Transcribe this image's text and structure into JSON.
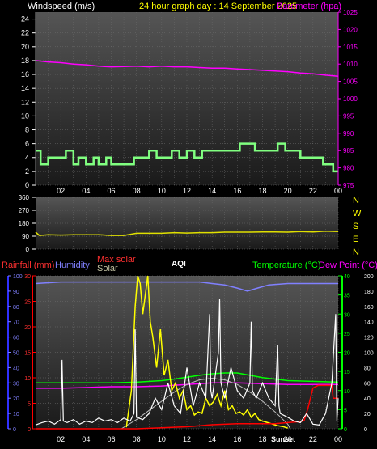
{
  "header": {
    "windspeed_label": "Windspeed (m/s)",
    "title": "24 hour graph day : 14 September 2025",
    "barometer_label": "Barometer (hpa)"
  },
  "wind_direction_letters": [
    "N",
    "W",
    "S",
    "E",
    "N"
  ],
  "bottom_labels": {
    "rainfall": "Rainfall (mm)",
    "humidity": "Humidity",
    "max_solar": "Max solar",
    "solar": "Solar",
    "aqi": "AQI",
    "temperature": "Temperature (°C)",
    "dew_point": "Dew Point (°C)",
    "sunset": "Sunset"
  },
  "colors": {
    "windspeed": "#80ff80",
    "barometer": "#ff00ff",
    "wind_direction": "#e0e000",
    "rainfall": "#ff0000",
    "humidity": "#8080ff",
    "max_solar": "#c0c0c0",
    "solar": "#ffff00",
    "aqi": "#ffffff",
    "temperature": "#00ff00",
    "dew_point": "#ff00ff"
  },
  "chart_data": [
    {
      "type": "line",
      "name": "wind-baro",
      "x_ticks": [
        "02",
        "04",
        "06",
        "08",
        "10",
        "12",
        "14",
        "16",
        "18",
        "20",
        "22",
        "00"
      ],
      "xlim": [
        0,
        24
      ],
      "ylim_left": [
        0,
        25
      ],
      "yticks_left": [
        0,
        2,
        4,
        6,
        8,
        10,
        12,
        14,
        16,
        18,
        20,
        22,
        24
      ],
      "ylim_right": [
        975,
        1025
      ],
      "yticks_right": [
        975,
        980,
        985,
        990,
        995,
        1000,
        1005,
        1010,
        1015,
        1020,
        1025
      ],
      "series": [
        {
          "key": "windspeed",
          "axis": "left",
          "step": true,
          "x": [
            0,
            0.4,
            1.0,
            1.6,
            2.4,
            3.0,
            3.4,
            4.0,
            4.6,
            5.0,
            5.6,
            6.0,
            6.6,
            7.2,
            7.8,
            8.6,
            9.0,
            9.6,
            10.2,
            10.8,
            11.4,
            12.0,
            12.6,
            13.2,
            13.8,
            14.4,
            15.0,
            15.6,
            16.2,
            16.8,
            17.4,
            18.0,
            18.6,
            19.2,
            19.8,
            20.4,
            21.0,
            21.6,
            22.2,
            22.8,
            23.2,
            23.6,
            24.0
          ],
          "y": [
            5,
            3,
            4,
            4,
            5,
            3,
            4,
            3,
            4,
            3,
            4,
            3,
            3,
            3,
            4,
            4,
            5,
            4,
            4,
            5,
            4,
            5,
            4,
            5,
            5,
            5,
            5,
            5,
            6,
            6,
            5,
            5,
            5,
            6,
            5,
            5,
            4,
            4,
            4,
            3,
            3,
            2,
            2
          ]
        },
        {
          "key": "barometer",
          "axis": "right",
          "step": false,
          "x": [
            0,
            1,
            2,
            3,
            4,
            5,
            6,
            7,
            8,
            9,
            10,
            11,
            12,
            13,
            14,
            15,
            16,
            17,
            18,
            19,
            20,
            21,
            22,
            23,
            24
          ],
          "y": [
            1011.0,
            1010.6,
            1010.4,
            1010.0,
            1009.8,
            1009.4,
            1009.2,
            1009.3,
            1009.4,
            1009.2,
            1009.4,
            1009.2,
            1009.2,
            1009.0,
            1008.8,
            1008.8,
            1008.6,
            1008.4,
            1008.2,
            1008.0,
            1007.8,
            1007.4,
            1007.2,
            1006.8,
            1006.5
          ]
        }
      ]
    },
    {
      "type": "line",
      "name": "wind-direction",
      "xlim": [
        0,
        24
      ],
      "ylim": [
        0,
        360
      ],
      "yticks": [
        0,
        90,
        180,
        270,
        360
      ],
      "series": [
        {
          "key": "wind_direction",
          "x": [
            0,
            0.3,
            1,
            2,
            3,
            4,
            5,
            6,
            7,
            8,
            9,
            10,
            11,
            12,
            13,
            14,
            15,
            16,
            17,
            18,
            19,
            20,
            21,
            22,
            23,
            24
          ],
          "y": [
            118,
            95,
            100,
            98,
            100,
            100,
            100,
            95,
            95,
            110,
            110,
            110,
            115,
            112,
            115,
            115,
            118,
            118,
            118,
            120,
            120,
            118,
            122,
            120,
            125,
            122
          ]
        }
      ]
    },
    {
      "type": "line",
      "name": "rain-temp-solar",
      "x_ticks": [
        "02",
        "04",
        "06",
        "08",
        "10",
        "12",
        "14",
        "16",
        "18",
        "20",
        "22",
        "00"
      ],
      "xlim": [
        0,
        24
      ],
      "ylim_rain": [
        0,
        30
      ],
      "yticks_rain": [
        0,
        5,
        10,
        15,
        20,
        25,
        30
      ],
      "ylim_hum": [
        0,
        100
      ],
      "yticks_hum": [
        0,
        10,
        20,
        30,
        40,
        50,
        60,
        70,
        80,
        90,
        100
      ],
      "ylim_temp": [
        0,
        40
      ],
      "yticks_temp": [
        0,
        5,
        10,
        15,
        20,
        25,
        30,
        35,
        40
      ],
      "ylim_solar": [
        0,
        200
      ],
      "yticks_solar": [
        0,
        20,
        40,
        60,
        80,
        100,
        120,
        140,
        160,
        180,
        200
      ],
      "series": [
        {
          "key": "humidity",
          "axis": "hum",
          "x": [
            0,
            2,
            4,
            6,
            8,
            10,
            12,
            13,
            14,
            15,
            16,
            16.8,
            17.6,
            18.5,
            20,
            22,
            24
          ],
          "y": [
            95,
            96,
            96,
            96,
            96,
            96,
            96,
            96,
            95,
            94,
            92,
            90,
            92,
            94,
            95,
            95,
            95
          ]
        },
        {
          "key": "temperature",
          "axis": "temp",
          "x": [
            0,
            2,
            4,
            6,
            8,
            10,
            11,
            12,
            13,
            14,
            15,
            16,
            17,
            18,
            19,
            20,
            22,
            24
          ],
          "y": [
            12.0,
            12.0,
            12.0,
            12.0,
            12.2,
            12.6,
            13.0,
            13.5,
            14.0,
            14.4,
            14.6,
            14.6,
            14.0,
            13.4,
            13.0,
            12.6,
            12.4,
            12.2
          ]
        },
        {
          "key": "dew_point",
          "axis": "temp",
          "x": [
            0,
            2,
            4,
            6,
            8,
            10,
            12,
            14,
            16,
            18,
            20,
            22,
            24
          ],
          "y": [
            10.6,
            10.6,
            10.8,
            11.0,
            11.0,
            11.2,
            11.6,
            12.0,
            12.0,
            11.8,
            11.6,
            11.6,
            11.6
          ]
        },
        {
          "key": "max_solar",
          "axis": "solar",
          "x": [
            6.8,
            8,
            9,
            10,
            11,
            12,
            13,
            14,
            15,
            16,
            17,
            18,
            19,
            20,
            20.2
          ],
          "y": [
            0,
            12,
            24,
            36,
            48,
            58,
            64,
            66,
            64,
            58,
            48,
            36,
            22,
            6,
            0
          ]
        },
        {
          "key": "solar",
          "axis": "solar",
          "x": [
            7.2,
            7.6,
            7.9,
            8.1,
            8.3,
            8.5,
            8.7,
            8.9,
            9.1,
            9.3,
            9.6,
            9.9,
            10.2,
            10.5,
            10.8,
            11.1,
            11.4,
            11.7,
            12.0,
            12.3,
            12.6,
            12.9,
            13.2,
            13.5,
            13.8,
            14.1,
            14.4,
            14.7,
            15.0,
            15.3,
            15.6,
            15.9,
            16.2,
            16.5,
            16.8,
            17.1,
            17.4,
            17.7,
            18.0,
            18.4,
            18.8,
            19.2,
            19.6,
            20.0
          ],
          "y": [
            2,
            50,
            160,
            200,
            190,
            150,
            175,
            200,
            140,
            120,
            80,
            130,
            70,
            90,
            50,
            60,
            40,
            50,
            25,
            30,
            18,
            22,
            20,
            40,
            30,
            35,
            45,
            30,
            50,
            25,
            30,
            20,
            22,
            18,
            25,
            15,
            20,
            12,
            10,
            8,
            6,
            4,
            3,
            1
          ]
        },
        {
          "key": "rainfall",
          "axis": "rain",
          "x": [
            0,
            8,
            10,
            12,
            14,
            16,
            18,
            19,
            20,
            21,
            21.3,
            21.6,
            22,
            22.4,
            23.5,
            23.6,
            24
          ],
          "y": [
            0,
            0,
            0.2,
            0.4,
            0.8,
            1.0,
            1.0,
            1.0,
            1.2,
            1.4,
            1.6,
            4.0,
            8.0,
            8.5,
            8.5,
            6.0,
            6.0
          ]
        },
        {
          "key": "aqi",
          "axis": "solar",
          "x": [
            0,
            0.5,
            1.0,
            1.5,
            2.0,
            2.1,
            2.2,
            2.5,
            3.0,
            3.5,
            4.0,
            4.5,
            5.0,
            5.5,
            6.0,
            6.5,
            7.0,
            7.5,
            7.8,
            7.9,
            8.0,
            8.5,
            9.0,
            9.5,
            10.0,
            10.5,
            11.0,
            11.5,
            12.0,
            12.5,
            13.0,
            13.5,
            13.8,
            13.9,
            14.0,
            14.5,
            14.6,
            14.7,
            15.0,
            15.5,
            16.0,
            16.5,
            17.0,
            17.1,
            17.2,
            17.5,
            18.0,
            18.5,
            19.0,
            19.2,
            19.3,
            19.4,
            20.0,
            20.5,
            21.0,
            21.5,
            22.0,
            22.5,
            23.0,
            23.5,
            23.8,
            23.9,
            24.0
          ],
          "y": [
            5,
            8,
            10,
            6,
            12,
            90,
            10,
            8,
            12,
            6,
            10,
            8,
            14,
            10,
            12,
            8,
            14,
            10,
            20,
            130,
            15,
            12,
            20,
            40,
            25,
            60,
            30,
            20,
            80,
            30,
            60,
            40,
            150,
            50,
            40,
            100,
            170,
            60,
            40,
            80,
            50,
            40,
            60,
            140,
            50,
            40,
            60,
            40,
            30,
            110,
            30,
            20,
            15,
            10,
            8,
            20,
            6,
            5,
            20,
            60,
            150,
            10,
            40
          ]
        }
      ]
    }
  ]
}
